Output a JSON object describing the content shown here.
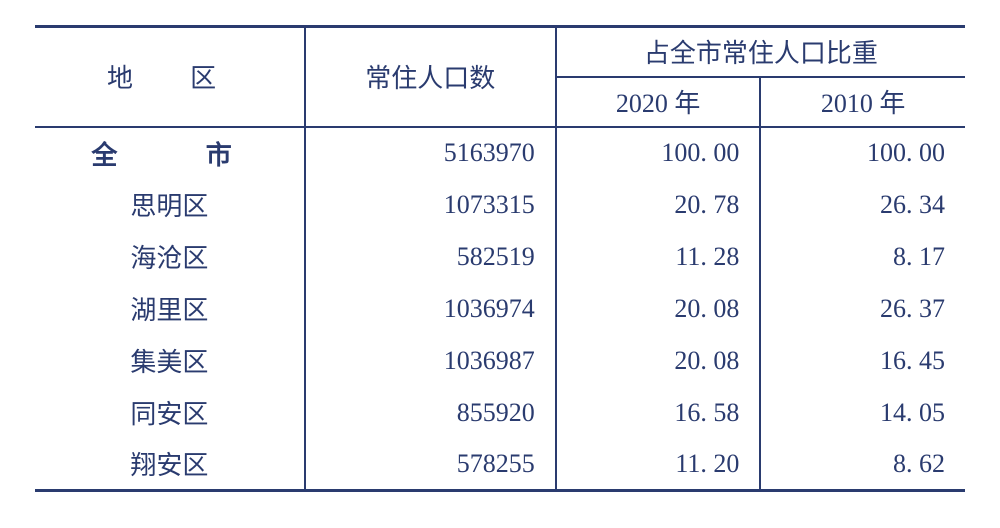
{
  "tableMeta": {
    "textColor": "#2a3b6f",
    "borderColor": "#2a3b6f",
    "backgroundColor": "#ffffff",
    "fontFamily": "SimSun",
    "fontSizePt": 20,
    "columnWidthsPercent": [
      29,
      27,
      22,
      22
    ]
  },
  "header": {
    "regionLabel": "地　区",
    "populationLabel": "常住人口数",
    "shareGroupLabel": "占全市常住人口比重",
    "year2020Label": "2020 年",
    "year2010Label": "2010 年"
  },
  "rows": [
    {
      "region": "全　市",
      "isTotal": true,
      "population": "5163970",
      "share2020": "100. 00",
      "share2010": "100. 00"
    },
    {
      "region": "思明区",
      "isTotal": false,
      "population": "1073315",
      "share2020": "20. 78",
      "share2010": "26. 34"
    },
    {
      "region": "海沧区",
      "isTotal": false,
      "population": "582519",
      "share2020": "11. 28",
      "share2010": "8. 17"
    },
    {
      "region": "湖里区",
      "isTotal": false,
      "population": "1036974",
      "share2020": "20. 08",
      "share2010": "26. 37"
    },
    {
      "region": "集美区",
      "isTotal": false,
      "population": "1036987",
      "share2020": "20. 08",
      "share2010": "16. 45"
    },
    {
      "region": "同安区",
      "isTotal": false,
      "population": "855920",
      "share2020": "16. 58",
      "share2010": "14. 05"
    },
    {
      "region": "翔安区",
      "isTotal": false,
      "population": "578255",
      "share2020": "11. 20",
      "share2010": "8. 62"
    }
  ]
}
